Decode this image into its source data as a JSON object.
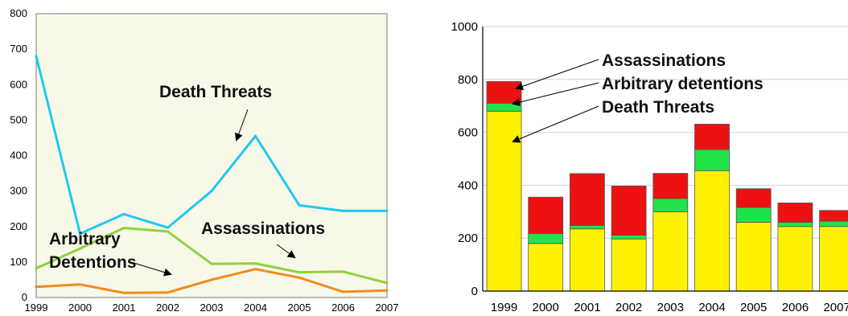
{
  "chart_data": [
    {
      "type": "line",
      "x": [
        1999,
        2000,
        2001,
        2002,
        2003,
        2004,
        2005,
        2006,
        2007
      ],
      "ylim": [
        0,
        800
      ],
      "yticks": [
        0,
        100,
        200,
        300,
        400,
        500,
        600,
        700,
        800
      ],
      "grid": false,
      "series": [
        {
          "name": "Death Threats",
          "color": "#1ec8f0",
          "values": [
            680,
            180,
            235,
            197,
            300,
            455,
            260,
            244,
            244
          ]
        },
        {
          "name": "Assassinations",
          "color": "#8fd23c",
          "values": [
            82,
            138,
            196,
            186,
            95,
            96,
            71,
            73,
            41
          ]
        },
        {
          "name": "Arbitrary Detentions",
          "color": "#f28a1e",
          "values": [
            30,
            37,
            13,
            14,
            50,
            80,
            56,
            16,
            20
          ]
        }
      ],
      "annotations": {
        "death_threats": "Death Threats",
        "assassinations": "Assassinations",
        "arbitrary_1": "Arbitrary",
        "arbitrary_2": "Detentions"
      },
      "background": "#f8f8e9"
    },
    {
      "type": "bar",
      "stacked": true,
      "categories": [
        "1999",
        "2000",
        "2001",
        "2002",
        "2003",
        "2004",
        "2005",
        "2006",
        "2007"
      ],
      "ylim": [
        0,
        1000
      ],
      "yticks": [
        0,
        200,
        400,
        600,
        800,
        1000
      ],
      "grid": true,
      "series": [
        {
          "name": "Death Threats",
          "color": "#fff200",
          "values": [
            680,
            180,
            235,
            197,
            300,
            455,
            260,
            244,
            244
          ]
        },
        {
          "name": "Arbitrary detentions",
          "color": "#22e24a",
          "values": [
            30,
            37,
            13,
            14,
            50,
            80,
            56,
            16,
            20
          ]
        },
        {
          "name": "Assassinations",
          "color": "#ee1111",
          "values": [
            82,
            138,
            196,
            186,
            95,
            96,
            71,
            73,
            41
          ]
        }
      ],
      "legend_labels": {
        "assassinations": "Assassinations",
        "arbitrary": "Arbitrary detentions",
        "death_threats": "Death Threats"
      }
    }
  ]
}
